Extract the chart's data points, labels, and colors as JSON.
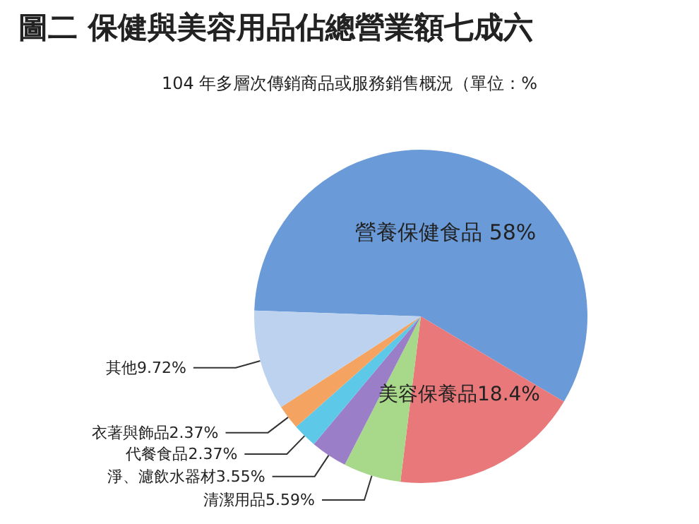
{
  "chart_data": {
    "type": "pie",
    "title": "圖二 保健與美容用品佔總營業額七成六",
    "subtitle": "104 年多層次傳銷商品或服務銷售概況（單位：%",
    "categories": [
      "營養保健食品",
      "美容保養品",
      "清潔用品",
      "淨、濾飲水器材",
      "代餐食品",
      "衣著與飾品",
      "其他"
    ],
    "values": [
      58,
      18.4,
      5.59,
      3.55,
      2.37,
      2.37,
      9.72
    ],
    "colors": [
      "#6a9bd8",
      "#e8787a",
      "#a8d88a",
      "#9a7ec8",
      "#5ec8e8",
      "#f4a460",
      "#bcd2ee"
    ],
    "value_labels": [
      "58%",
      "18.4%",
      "5.59%",
      "3.55%",
      "2.37%",
      "2.37%",
      "9.72%"
    ],
    "legend": false
  }
}
